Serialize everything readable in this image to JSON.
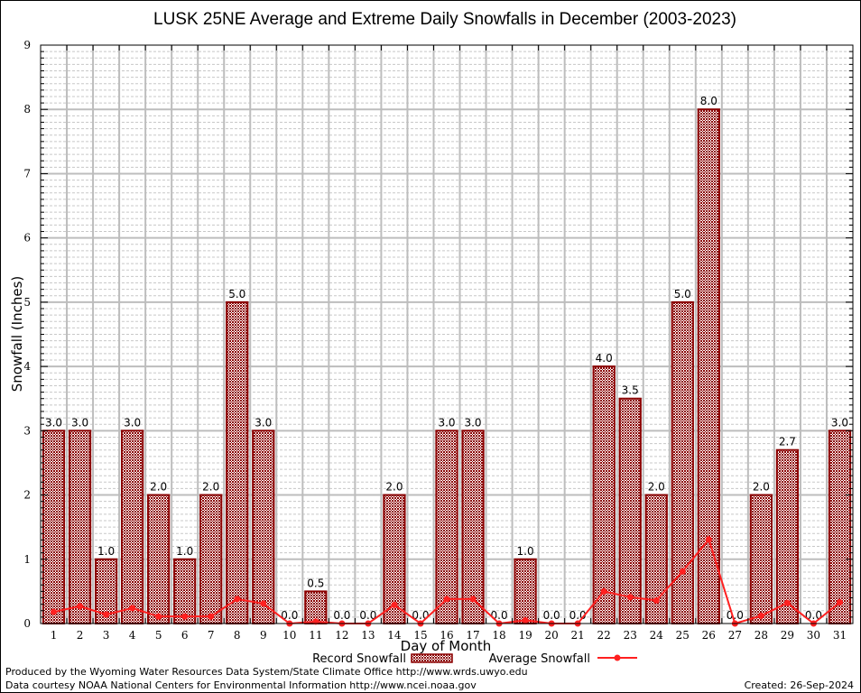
{
  "chart_data": {
    "type": "bar",
    "title": "LUSK 25NE Average and Extreme Daily Snowfalls in December (2003-2023)",
    "xlabel": "Day of Month",
    "ylabel": "Snowfall (Inches)",
    "ylim": [
      0,
      9
    ],
    "yticks": [
      "0",
      "1",
      "2",
      "3",
      "4",
      "5",
      "6",
      "7",
      "8",
      "9"
    ],
    "grid": true,
    "legend_position": "bottom-center",
    "categories": [
      "1",
      "2",
      "3",
      "4",
      "5",
      "6",
      "7",
      "8",
      "9",
      "10",
      "11",
      "12",
      "13",
      "14",
      "15",
      "16",
      "17",
      "18",
      "19",
      "20",
      "21",
      "22",
      "23",
      "24",
      "25",
      "26",
      "27",
      "28",
      "29",
      "30",
      "31"
    ],
    "series": [
      {
        "name": "Record Snowfall",
        "type": "bar",
        "color": "#8b0000",
        "values": [
          3.0,
          3.0,
          1.0,
          3.0,
          2.0,
          1.0,
          2.0,
          5.0,
          3.0,
          0.0,
          0.5,
          0.0,
          0.0,
          2.0,
          0.0,
          3.0,
          3.0,
          0.0,
          1.0,
          0.0,
          0.0,
          4.0,
          3.5,
          2.0,
          5.0,
          8.0,
          0.0,
          2.0,
          2.7,
          0.0,
          3.0
        ],
        "labels": [
          "3.0",
          "3.0",
          "1.0",
          "3.0",
          "2.0",
          "1.0",
          "2.0",
          "5.0",
          "3.0",
          "0.0",
          "0.5",
          "0.0",
          "0.0",
          "2.0",
          "0.0",
          "3.0",
          "3.0",
          "0.0",
          "1.0",
          "0.0",
          "0.0",
          "4.0",
          "3.5",
          "2.0",
          "5.0",
          "8.0",
          "0.0",
          "2.0",
          "2.7",
          "0.0",
          "3.0"
        ]
      },
      {
        "name": "Average Snowfall",
        "type": "line",
        "color": "#ff2020",
        "values": [
          0.18,
          0.27,
          0.14,
          0.24,
          0.11,
          0.11,
          0.11,
          0.38,
          0.31,
          0.0,
          0.03,
          0.0,
          0.0,
          0.29,
          0.0,
          0.38,
          0.38,
          0.0,
          0.05,
          0.0,
          0.0,
          0.5,
          0.41,
          0.36,
          0.81,
          1.31,
          0.0,
          0.12,
          0.32,
          0.0,
          0.33
        ]
      }
    ]
  },
  "footer": {
    "produced_by": "Produced by the Wyoming Water Resources Data System/State Climate Office http://www.wrds.uwyo.edu",
    "data_courtesy": "Data courtesy NOAA National Centers for Environmental Information http://www.ncei.noaa.gov",
    "created": "Created: 26-Sep-2024"
  }
}
